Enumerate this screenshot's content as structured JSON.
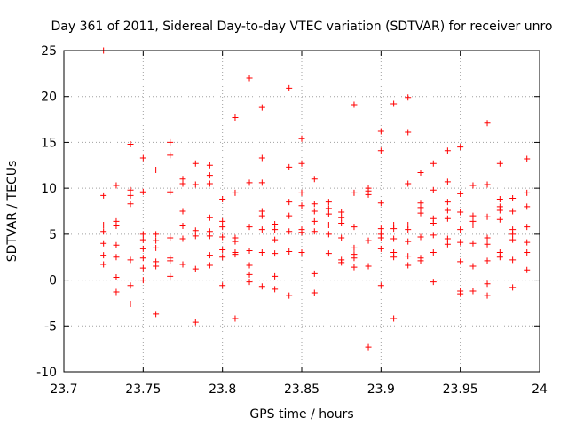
{
  "chart_data": {
    "type": "scatter",
    "title": "Day 361 of 2011, Sidereal Day-to-day VTEC variation (SDTVAR) for receiver unro",
    "xlabel": "GPS time / hours",
    "ylabel": "SDTVAR / TECUs",
    "xlim": [
      23.7,
      24.0
    ],
    "ylim": [
      -10,
      25
    ],
    "xticks": [
      "23.7",
      "23.75",
      "23.8",
      "23.85",
      "23.9",
      "23.95",
      "24"
    ],
    "yticks": [
      "-10",
      "-5",
      "0",
      "5",
      "10",
      "15",
      "20",
      "25"
    ],
    "grid": true,
    "marker": "+",
    "color": "#ff0000",
    "series": [
      {
        "name": "SDTVAR",
        "points": [
          [
            23.725,
            25.0
          ],
          [
            23.725,
            9.2
          ],
          [
            23.725,
            6.0
          ],
          [
            23.725,
            5.3
          ],
          [
            23.725,
            4.0
          ],
          [
            23.725,
            2.7
          ],
          [
            23.725,
            1.7
          ],
          [
            23.733,
            10.3
          ],
          [
            23.733,
            6.4
          ],
          [
            23.733,
            5.9
          ],
          [
            23.733,
            3.8
          ],
          [
            23.733,
            2.5
          ],
          [
            23.733,
            0.3
          ],
          [
            23.733,
            -1.3
          ],
          [
            23.742,
            14.8
          ],
          [
            23.742,
            9.8
          ],
          [
            23.742,
            9.2
          ],
          [
            23.742,
            8.3
          ],
          [
            23.742,
            2.2
          ],
          [
            23.742,
            -0.6
          ],
          [
            23.742,
            -2.6
          ],
          [
            23.75,
            13.3
          ],
          [
            23.75,
            9.6
          ],
          [
            23.75,
            5.0
          ],
          [
            23.75,
            4.4
          ],
          [
            23.75,
            3.4
          ],
          [
            23.75,
            2.4
          ],
          [
            23.75,
            1.3
          ],
          [
            23.75,
            0.0
          ],
          [
            23.758,
            12.0
          ],
          [
            23.758,
            5.0
          ],
          [
            23.758,
            4.3
          ],
          [
            23.758,
            3.5
          ],
          [
            23.758,
            2.0
          ],
          [
            23.758,
            1.5
          ],
          [
            23.758,
            -3.7
          ],
          [
            23.767,
            15.0
          ],
          [
            23.767,
            13.6
          ],
          [
            23.767,
            9.6
          ],
          [
            23.767,
            4.6
          ],
          [
            23.767,
            2.4
          ],
          [
            23.767,
            2.1
          ],
          [
            23.767,
            0.4
          ],
          [
            23.775,
            11.0
          ],
          [
            23.775,
            10.5
          ],
          [
            23.775,
            7.5
          ],
          [
            23.775,
            5.9
          ],
          [
            23.775,
            4.5
          ],
          [
            23.775,
            1.7
          ],
          [
            23.783,
            12.7
          ],
          [
            23.783,
            10.4
          ],
          [
            23.783,
            5.4
          ],
          [
            23.783,
            4.8
          ],
          [
            23.783,
            1.2
          ],
          [
            23.783,
            -4.6
          ],
          [
            23.792,
            12.5
          ],
          [
            23.792,
            11.4
          ],
          [
            23.792,
            10.5
          ],
          [
            23.792,
            6.8
          ],
          [
            23.792,
            5.3
          ],
          [
            23.792,
            4.8
          ],
          [
            23.792,
            2.7
          ],
          [
            23.792,
            1.6
          ],
          [
            23.8,
            8.8
          ],
          [
            23.8,
            6.4
          ],
          [
            23.8,
            5.8
          ],
          [
            23.8,
            4.7
          ],
          [
            23.8,
            3.3
          ],
          [
            23.8,
            2.5
          ],
          [
            23.8,
            -0.6
          ],
          [
            23.808,
            17.7
          ],
          [
            23.808,
            9.5
          ],
          [
            23.808,
            4.6
          ],
          [
            23.808,
            4.2
          ],
          [
            23.808,
            3.0
          ],
          [
            23.808,
            2.8
          ],
          [
            23.808,
            -4.2
          ],
          [
            23.817,
            22.0
          ],
          [
            23.817,
            10.6
          ],
          [
            23.817,
            5.8
          ],
          [
            23.817,
            3.2
          ],
          [
            23.817,
            1.6
          ],
          [
            23.817,
            0.6
          ],
          [
            23.817,
            -0.2
          ],
          [
            23.825,
            18.8
          ],
          [
            23.825,
            13.3
          ],
          [
            23.825,
            10.6
          ],
          [
            23.825,
            7.5
          ],
          [
            23.825,
            7.0
          ],
          [
            23.825,
            5.5
          ],
          [
            23.825,
            3.0
          ],
          [
            23.825,
            -0.7
          ],
          [
            23.833,
            6.1
          ],
          [
            23.833,
            5.5
          ],
          [
            23.833,
            4.4
          ],
          [
            23.833,
            2.9
          ],
          [
            23.833,
            0.4
          ],
          [
            23.833,
            -1.0
          ],
          [
            23.842,
            20.9
          ],
          [
            23.842,
            12.3
          ],
          [
            23.842,
            8.5
          ],
          [
            23.842,
            7.0
          ],
          [
            23.842,
            5.3
          ],
          [
            23.842,
            3.1
          ],
          [
            23.842,
            -1.7
          ],
          [
            23.85,
            15.4
          ],
          [
            23.85,
            12.7
          ],
          [
            23.85,
            9.5
          ],
          [
            23.85,
            8.1
          ],
          [
            23.85,
            5.5
          ],
          [
            23.85,
            5.2
          ],
          [
            23.85,
            3.0
          ],
          [
            23.858,
            11.0
          ],
          [
            23.858,
            8.3
          ],
          [
            23.858,
            7.5
          ],
          [
            23.858,
            6.4
          ],
          [
            23.858,
            5.3
          ],
          [
            23.858,
            0.7
          ],
          [
            23.858,
            -1.4
          ],
          [
            23.867,
            8.5
          ],
          [
            23.867,
            7.8
          ],
          [
            23.867,
            7.2
          ],
          [
            23.867,
            6.0
          ],
          [
            23.867,
            5.0
          ],
          [
            23.867,
            2.9
          ],
          [
            23.875,
            7.4
          ],
          [
            23.875,
            6.8
          ],
          [
            23.875,
            6.2
          ],
          [
            23.875,
            4.6
          ],
          [
            23.875,
            2.2
          ],
          [
            23.875,
            1.9
          ],
          [
            23.883,
            19.1
          ],
          [
            23.883,
            9.5
          ],
          [
            23.883,
            5.8
          ],
          [
            23.883,
            3.5
          ],
          [
            23.883,
            2.8
          ],
          [
            23.883,
            2.4
          ],
          [
            23.883,
            1.4
          ],
          [
            23.892,
            10.0
          ],
          [
            23.892,
            9.7
          ],
          [
            23.892,
            9.3
          ],
          [
            23.892,
            4.3
          ],
          [
            23.892,
            1.5
          ],
          [
            23.892,
            -7.3
          ],
          [
            23.9,
            16.2
          ],
          [
            23.9,
            14.1
          ],
          [
            23.9,
            8.4
          ],
          [
            23.9,
            5.6
          ],
          [
            23.9,
            5.0
          ],
          [
            23.9,
            4.6
          ],
          [
            23.9,
            3.4
          ],
          [
            23.9,
            -0.6
          ],
          [
            23.908,
            19.2
          ],
          [
            23.908,
            6.0
          ],
          [
            23.908,
            5.6
          ],
          [
            23.908,
            4.5
          ],
          [
            23.908,
            3.0
          ],
          [
            23.908,
            2.5
          ],
          [
            23.908,
            -4.2
          ],
          [
            23.917,
            19.9
          ],
          [
            23.917,
            16.1
          ],
          [
            23.917,
            10.5
          ],
          [
            23.917,
            6.0
          ],
          [
            23.917,
            5.5
          ],
          [
            23.917,
            4.2
          ],
          [
            23.917,
            2.6
          ],
          [
            23.917,
            1.6
          ],
          [
            23.925,
            11.7
          ],
          [
            23.925,
            8.4
          ],
          [
            23.925,
            7.9
          ],
          [
            23.925,
            7.3
          ],
          [
            23.925,
            4.7
          ],
          [
            23.925,
            2.4
          ],
          [
            23.925,
            2.1
          ],
          [
            23.933,
            12.7
          ],
          [
            23.933,
            9.8
          ],
          [
            23.933,
            6.7
          ],
          [
            23.933,
            6.2
          ],
          [
            23.933,
            4.9
          ],
          [
            23.933,
            3.0
          ],
          [
            23.933,
            -0.2
          ],
          [
            23.942,
            14.1
          ],
          [
            23.942,
            10.7
          ],
          [
            23.942,
            8.5
          ],
          [
            23.942,
            7.6
          ],
          [
            23.942,
            6.7
          ],
          [
            23.942,
            4.5
          ],
          [
            23.942,
            3.9
          ],
          [
            23.95,
            14.5
          ],
          [
            23.95,
            9.4
          ],
          [
            23.95,
            7.4
          ],
          [
            23.95,
            5.5
          ],
          [
            23.95,
            4.1
          ],
          [
            23.95,
            2.0
          ],
          [
            23.95,
            -1.2
          ],
          [
            23.95,
            -1.5
          ],
          [
            23.958,
            10.3
          ],
          [
            23.958,
            7.0
          ],
          [
            23.958,
            6.4
          ],
          [
            23.958,
            6.0
          ],
          [
            23.958,
            4.0
          ],
          [
            23.958,
            1.5
          ],
          [
            23.958,
            -1.2
          ],
          [
            23.967,
            17.1
          ],
          [
            23.967,
            10.4
          ],
          [
            23.967,
            6.9
          ],
          [
            23.967,
            4.6
          ],
          [
            23.967,
            3.9
          ],
          [
            23.967,
            2.1
          ],
          [
            23.967,
            -0.4
          ],
          [
            23.967,
            -1.7
          ],
          [
            23.975,
            12.7
          ],
          [
            23.975,
            8.8
          ],
          [
            23.975,
            8.0
          ],
          [
            23.975,
            7.6
          ],
          [
            23.975,
            6.6
          ],
          [
            23.975,
            3.0
          ],
          [
            23.975,
            2.5
          ],
          [
            23.983,
            8.9
          ],
          [
            23.983,
            7.5
          ],
          [
            23.983,
            5.5
          ],
          [
            23.983,
            5.0
          ],
          [
            23.983,
            4.4
          ],
          [
            23.983,
            2.2
          ],
          [
            23.983,
            -0.8
          ],
          [
            23.992,
            13.2
          ],
          [
            23.992,
            9.5
          ],
          [
            23.992,
            8.0
          ],
          [
            23.992,
            5.8
          ],
          [
            23.992,
            4.1
          ],
          [
            23.992,
            3.0
          ],
          [
            23.992,
            1.1
          ]
        ]
      }
    ]
  }
}
